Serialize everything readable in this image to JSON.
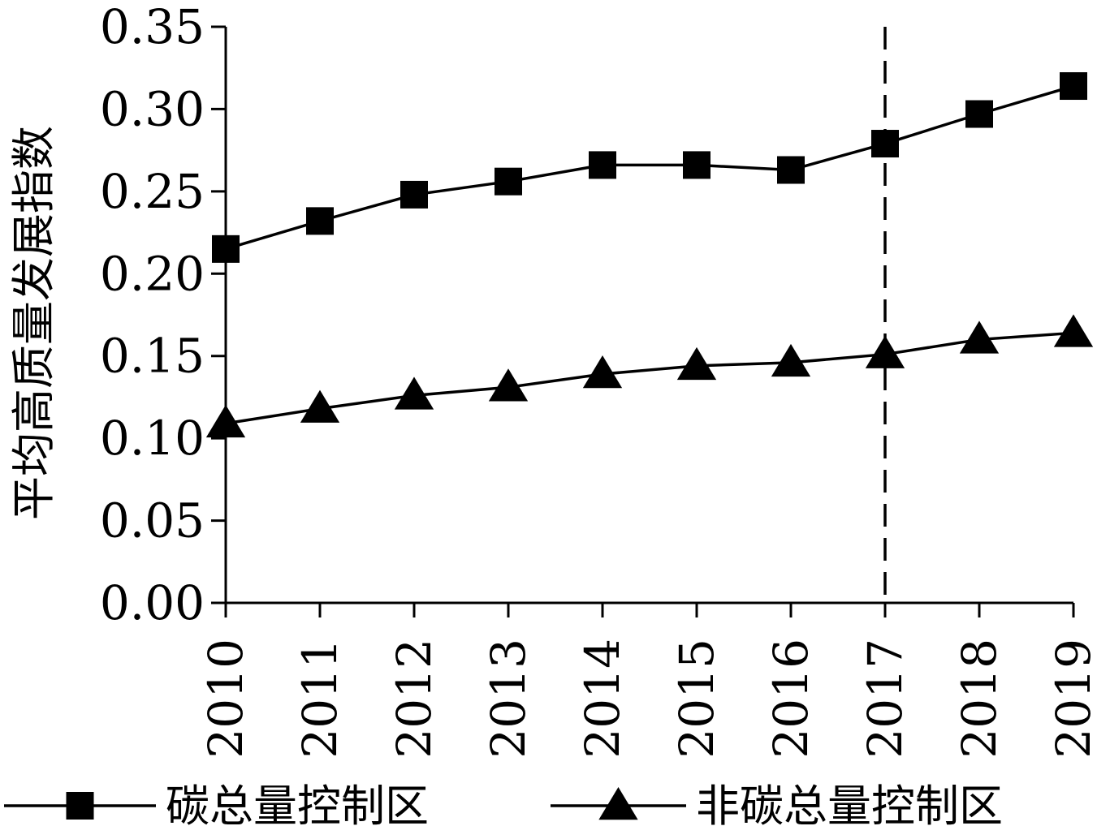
{
  "chart_data": {
    "type": "line",
    "title": "",
    "xlabel": "",
    "ylabel": "平均高质量发展指数",
    "categories": [
      "2010",
      "2011",
      "2012",
      "2013",
      "2014",
      "2015",
      "2016",
      "2017",
      "2018",
      "2019"
    ],
    "y_ticks": [
      "0.00",
      "0.05",
      "0.10",
      "0.15",
      "0.20",
      "0.25",
      "0.30",
      "0.35"
    ],
    "ylim": [
      0,
      0.35
    ],
    "grid": false,
    "legend_position": "bottom",
    "reference_line": {
      "x": "2017",
      "style": "dashed"
    },
    "series": [
      {
        "name": "碳总量控制区",
        "marker": "square",
        "values": [
          0.215,
          0.232,
          0.248,
          0.256,
          0.266,
          0.266,
          0.263,
          0.279,
          0.297,
          0.314
        ]
      },
      {
        "name": "非碳总量控制区",
        "marker": "triangle",
        "values": [
          0.109,
          0.118,
          0.126,
          0.131,
          0.139,
          0.144,
          0.146,
          0.151,
          0.16,
          0.164
        ]
      }
    ]
  },
  "colors": {
    "line": "#000000",
    "background": "#ffffff"
  }
}
